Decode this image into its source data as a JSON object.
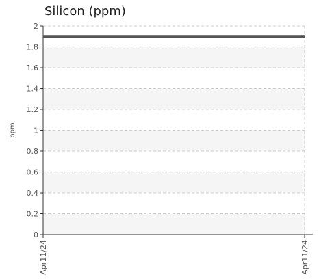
{
  "chart_data": {
    "type": "line",
    "title": "Silicon (ppm)",
    "xlabel": "",
    "ylabel": "ppm",
    "ylim": [
      0,
      2
    ],
    "yticks": [
      "0",
      "0.2",
      "0.4",
      "0.6",
      "0.8",
      "1",
      "1.2",
      "1.4",
      "1.6",
      "1.8",
      "2"
    ],
    "x": [
      "Apr11/24",
      "Apr11/24"
    ],
    "xtick_labels": [
      "Apr11/24",
      "Apr11/24"
    ],
    "series": [
      {
        "values": [
          1.9,
          1.9
        ],
        "color": "#555555"
      }
    ],
    "grid": true,
    "band_color": "#f5f5f5",
    "grid_color": "#cccccc",
    "axis_color": "#333333"
  }
}
